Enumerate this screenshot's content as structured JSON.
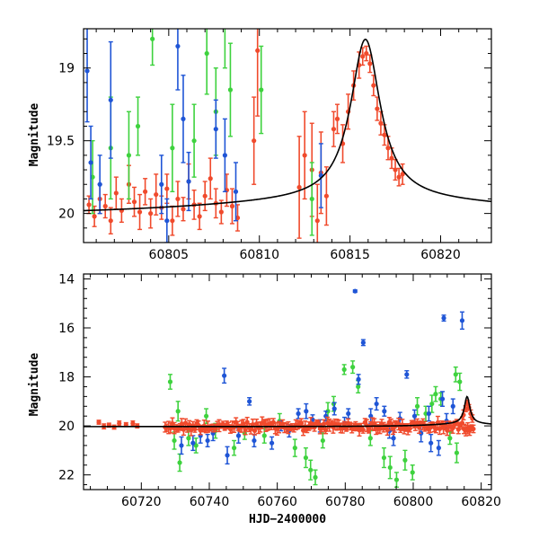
{
  "colors": {
    "red": "#f04a2c",
    "green": "#3ed23e",
    "blue": "#1f55d6",
    "model": "#000000"
  },
  "chart_data": [
    {
      "type": "scatter",
      "title": "",
      "xlabel": "",
      "ylabel": "Magnitude",
      "xlim": [
        60800.3,
        60822.8
      ],
      "ylim": [
        20.2,
        18.73
      ],
      "inverted_y": true,
      "xticks": [
        60805,
        60810,
        60815,
        60820
      ],
      "xtick_labels": [
        "60805",
        "60810",
        "60815",
        "60820"
      ],
      "yticks": [
        19,
        19.5,
        20
      ],
      "ytick_labels": [
        "19",
        "19.5",
        "20"
      ],
      "model_curve": {
        "t0": 60815.85,
        "u_floor": 20.03,
        "peak": 18.8,
        "tau": 1.0
      },
      "series": [
        {
          "color_key": "red",
          "points": [
            [
              60800.6,
              19.94,
              0.06
            ],
            [
              60800.9,
              20.02,
              0.07
            ],
            [
              60801.2,
              19.9,
              0.1
            ],
            [
              60801.5,
              19.95,
              0.08
            ],
            [
              60801.8,
              20.05,
              0.09
            ],
            [
              60802.1,
              19.86,
              0.11
            ],
            [
              60802.4,
              19.98,
              0.08
            ],
            [
              60802.8,
              19.8,
              0.13
            ],
            [
              60803.1,
              19.92,
              0.1
            ],
            [
              60803.4,
              19.99,
              0.12
            ],
            [
              60803.7,
              19.85,
              0.09
            ],
            [
              60804.0,
              20.0,
              0.1
            ],
            [
              60804.3,
              19.87,
              0.14
            ],
            [
              60804.6,
              19.96,
              0.08
            ],
            [
              60804.9,
              19.83,
              0.1
            ],
            [
              60805.2,
              20.05,
              0.1
            ],
            [
              60805.5,
              19.9,
              0.12
            ],
            [
              60805.8,
              19.97,
              0.08
            ],
            [
              60806.1,
              19.78,
              0.12
            ],
            [
              60806.4,
              19.94,
              0.1
            ],
            [
              60806.7,
              20.02,
              0.09
            ],
            [
              60807.0,
              19.88,
              0.1
            ],
            [
              60807.3,
              19.76,
              0.14
            ],
            [
              60807.6,
              19.93,
              0.1
            ],
            [
              60807.9,
              19.99,
              0.08
            ],
            [
              60808.2,
              19.84,
              0.11
            ],
            [
              60808.5,
              19.95,
              0.12
            ],
            [
              60808.8,
              20.03,
              0.09
            ],
            [
              60809.7,
              19.5,
              0.3
            ],
            [
              60809.9,
              18.88,
              0.45
            ],
            [
              60812.2,
              19.82,
              0.35
            ],
            [
              60812.5,
              19.6,
              0.3
            ],
            [
              60812.9,
              19.7,
              0.32
            ],
            [
              60813.2,
              20.05,
              0.25
            ],
            [
              60813.4,
              19.72,
              0.28
            ],
            [
              60813.7,
              19.88,
              0.2
            ],
            [
              60814.1,
              19.42,
              0.12
            ],
            [
              60814.3,
              19.35,
              0.1
            ],
            [
              60814.6,
              19.52,
              0.13
            ],
            [
              60814.9,
              19.3,
              0.12
            ],
            [
              60815.2,
              19.12,
              0.1
            ],
            [
              60815.5,
              18.98,
              0.09
            ],
            [
              60815.7,
              18.92,
              0.06
            ],
            [
              60815.9,
              18.9,
              0.05
            ],
            [
              60816.1,
              18.97,
              0.06
            ],
            [
              60816.3,
              19.12,
              0.07
            ],
            [
              60816.5,
              19.28,
              0.08
            ],
            [
              60816.7,
              19.38,
              0.08
            ],
            [
              60816.9,
              19.46,
              0.07
            ],
            [
              60817.1,
              19.55,
              0.08
            ],
            [
              60817.3,
              19.62,
              0.07
            ],
            [
              60817.5,
              19.7,
              0.07
            ],
            [
              60817.7,
              19.75,
              0.06
            ],
            [
              60817.9,
              19.73,
              0.07
            ]
          ]
        },
        {
          "color_key": "green",
          "points": [
            [
              60800.8,
              19.75,
              0.25
            ],
            [
              60801.8,
              19.55,
              0.35
            ],
            [
              60802.8,
              19.6,
              0.3
            ],
            [
              60803.3,
              19.4,
              0.2
            ],
            [
              60804.1,
              18.8,
              0.18
            ],
            [
              60805.2,
              19.55,
              0.3
            ],
            [
              60806.4,
              19.5,
              0.25
            ],
            [
              60807.1,
              18.9,
              0.28
            ],
            [
              60807.6,
              19.3,
              0.3
            ],
            [
              60808.1,
              18.7,
              0.3
            ],
            [
              60808.4,
              19.15,
              0.32
            ],
            [
              60810.1,
              19.15,
              0.3
            ],
            [
              60812.9,
              19.9,
              0.25
            ]
          ]
        },
        {
          "color_key": "blue",
          "points": [
            [
              60800.5,
              19.02,
              0.35
            ],
            [
              60800.7,
              19.65,
              0.25
            ],
            [
              60801.2,
              19.8,
              0.2
            ],
            [
              60801.8,
              19.22,
              0.4
            ],
            [
              60804.6,
              19.8,
              0.2
            ],
            [
              60804.9,
              20.05,
              0.15
            ],
            [
              60805.5,
              18.85,
              0.3
            ],
            [
              60805.8,
              19.35,
              0.3
            ],
            [
              60806.1,
              19.78,
              0.2
            ],
            [
              60807.6,
              19.42,
              0.2
            ],
            [
              60808.1,
              19.6,
              0.25
            ],
            [
              60808.7,
              19.85,
              0.2
            ],
            [
              60813.4,
              19.74,
              0.22
            ]
          ]
        }
      ]
    },
    {
      "type": "scatter",
      "title": "",
      "xlabel": "HJD−2400000",
      "ylabel": "Magnitude",
      "xlim": [
        60703,
        60823
      ],
      "ylim": [
        22.6,
        13.8
      ],
      "inverted_y": true,
      "xticks": [
        60720,
        60740,
        60760,
        60780,
        60800,
        60820
      ],
      "xtick_labels": [
        "60720",
        "60740",
        "60760",
        "60780",
        "60800",
        "60820"
      ],
      "yticks": [
        14,
        16,
        18,
        20,
        22
      ],
      "ytick_labels": [
        "14",
        "16",
        "18",
        "20",
        "22"
      ],
      "model_curve": {
        "t0": 60815.85,
        "u_floor": 20.03,
        "peak": 18.8,
        "tau": 1.0
      },
      "series": [
        {
          "color_key": "green",
          "points": [
            [
              60728.5,
              18.2,
              0.3
            ],
            [
              60729.7,
              20.6,
              0.35
            ],
            [
              60730.8,
              19.4,
              0.4
            ],
            [
              60731.3,
              21.5,
              0.35
            ],
            [
              60733.9,
              20.5,
              0.3
            ],
            [
              60736.1,
              20.8,
              0.3
            ],
            [
              60739.1,
              19.6,
              0.3
            ],
            [
              60741.8,
              20.2,
              0.3
            ],
            [
              60747.3,
              20.9,
              0.3
            ],
            [
              60750.4,
              20.3,
              0.25
            ],
            [
              60756.2,
              20.4,
              0.3
            ],
            [
              60760.7,
              19.8,
              0.3
            ],
            [
              60765.2,
              20.9,
              0.35
            ],
            [
              60768.4,
              21.3,
              0.4
            ],
            [
              60769.8,
              21.8,
              0.4
            ],
            [
              60771.2,
              22.1,
              0.3
            ],
            [
              60773.4,
              20.6,
              0.3
            ],
            [
              60774.9,
              19.4,
              0.35
            ],
            [
              60776.6,
              19.1,
              0.3
            ],
            [
              60779.7,
              17.7,
              0.2
            ],
            [
              60782.2,
              17.6,
              0.25
            ],
            [
              60783.8,
              18.4,
              0.25
            ],
            [
              60787.4,
              20.5,
              0.3
            ],
            [
              60791.4,
              21.3,
              0.4
            ],
            [
              60793.2,
              21.7,
              0.45
            ],
            [
              60795.1,
              22.2,
              0.3
            ],
            [
              60797.6,
              21.4,
              0.4
            ],
            [
              60799.8,
              21.9,
              0.3
            ],
            [
              60801.2,
              19.2,
              0.35
            ],
            [
              60803.7,
              19.5,
              0.3
            ],
            [
              60805.5,
              19.1,
              0.35
            ],
            [
              60806.6,
              18.7,
              0.3
            ],
            [
              60808.1,
              18.9,
              0.25
            ],
            [
              60810.8,
              20.5,
              0.25
            ],
            [
              60812.8,
              21.1,
              0.4
            ],
            [
              60813.7,
              18.2,
              0.35
            ],
            [
              60812.5,
              17.9,
              0.3
            ]
          ]
        },
        {
          "color_key": "blue",
          "points": [
            [
              60731.8,
              20.8,
              0.35
            ],
            [
              60735.2,
              20.7,
              0.3
            ],
            [
              60737.4,
              20.4,
              0.3
            ],
            [
              60739.5,
              20.6,
              0.25
            ],
            [
              60741.1,
              20.3,
              0.3
            ],
            [
              60744.4,
              17.95,
              0.3
            ],
            [
              60745.3,
              21.2,
              0.35
            ],
            [
              60748.6,
              20.4,
              0.3
            ],
            [
              60751.8,
              19.0,
              0.15
            ],
            [
              60753.2,
              20.6,
              0.25
            ],
            [
              60758.4,
              20.7,
              0.25
            ],
            [
              60761.1,
              20.0,
              0.2
            ],
            [
              60763.5,
              20.2,
              0.25
            ],
            [
              60766.2,
              19.5,
              0.2
            ],
            [
              60768.5,
              19.4,
              0.3
            ],
            [
              60770.4,
              19.75,
              0.2
            ],
            [
              60772.6,
              20.0,
              0.25
            ],
            [
              60774.3,
              19.6,
              0.2
            ],
            [
              60776.8,
              19.3,
              0.25
            ],
            [
              60779.8,
              19.9,
              0.25
            ],
            [
              60780.9,
              19.5,
              0.2
            ],
            [
              60782.9,
              14.5,
              0.05
            ],
            [
              60783.9,
              18.1,
              0.2
            ],
            [
              60785.3,
              16.6,
              0.12
            ],
            [
              60787.5,
              19.6,
              0.3
            ],
            [
              60789.2,
              19.1,
              0.25
            ],
            [
              60791.5,
              19.4,
              0.2
            ],
            [
              60793.0,
              20.2,
              0.3
            ],
            [
              60794.2,
              20.5,
              0.3
            ],
            [
              60796.1,
              19.7,
              0.25
            ],
            [
              60798.1,
              17.9,
              0.15
            ],
            [
              60800.4,
              19.6,
              0.25
            ],
            [
              60802.3,
              20.3,
              0.35
            ],
            [
              60804.6,
              19.5,
              0.3
            ],
            [
              60805.2,
              20.7,
              0.35
            ],
            [
              60807.5,
              20.9,
              0.3
            ],
            [
              60809.0,
              15.6,
              0.12
            ],
            [
              60809.8,
              19.8,
              0.3
            ],
            [
              60811.7,
              19.2,
              0.3
            ],
            [
              60814.4,
              15.7,
              0.35
            ],
            [
              60808.6,
              18.9,
              0.3
            ]
          ]
        },
        {
          "color_key": "red",
          "band": {
            "start": 60727.5,
            "end": 60817.8,
            "step": 0.55,
            "base": 20.02
          },
          "points": [
            [
              60707.5,
              19.85,
              0.08
            ],
            [
              60709.0,
              20.02,
              0.1
            ],
            [
              60710.5,
              19.97,
              0.08
            ],
            [
              60712.0,
              20.05,
              0.08
            ],
            [
              60713.5,
              19.9,
              0.1
            ],
            [
              60715.5,
              19.95,
              0.08
            ],
            [
              60717.5,
              19.9,
              0.1
            ],
            [
              60718.8,
              20.0,
              0.08
            ],
            [
              60727.0,
              20.05,
              0.2
            ],
            [
              60814.8,
              19.55,
              0.2
            ],
            [
              60815.4,
              19.3,
              0.12
            ],
            [
              60815.9,
              19.05,
              0.1
            ],
            [
              60816.4,
              19.25,
              0.12
            ],
            [
              60816.9,
              19.5,
              0.15
            ],
            [
              60817.4,
              19.7,
              0.15
            ]
          ]
        }
      ]
    }
  ]
}
